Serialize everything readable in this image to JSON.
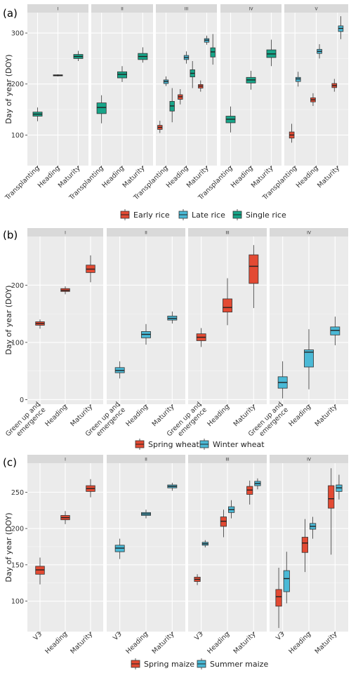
{
  "chart_data": [
    {
      "type": "box",
      "panel_label": "(a)",
      "ylabel": "Day of year (DOY)",
      "ylim": [
        40,
        340
      ],
      "yticks": [
        100,
        200,
        300
      ],
      "facets": [
        "I",
        "II",
        "III",
        "IV",
        "V"
      ],
      "categories": [
        "Transplanting",
        "Heading",
        "Maturity"
      ],
      "legend": [
        {
          "name": "Early rice",
          "color": "#e34a33"
        },
        {
          "name": "Late rice",
          "color": "#4ab9d6"
        },
        {
          "name": "Single rice",
          "color": "#17a589"
        }
      ],
      "boxes": [
        {
          "facet": 0,
          "category": 0,
          "series": "Single rice",
          "stats": [
            127,
            137,
            141,
            145,
            154
          ]
        },
        {
          "facet": 0,
          "category": 1,
          "series": "Single rice",
          "stats": [
            215,
            216,
            217,
            218,
            219
          ]
        },
        {
          "facet": 0,
          "category": 2,
          "series": "Single rice",
          "stats": [
            245,
            250,
            254,
            258,
            265
          ]
        },
        {
          "facet": 1,
          "category": 0,
          "series": "Single rice",
          "stats": [
            123,
            142,
            154,
            163,
            178
          ]
        },
        {
          "facet": 1,
          "category": 1,
          "series": "Single rice",
          "stats": [
            204,
            212,
            219,
            224,
            235
          ]
        },
        {
          "facet": 1,
          "category": 2,
          "series": "Single rice",
          "stats": [
            242,
            248,
            254,
            260,
            272
          ]
        },
        {
          "facet": 2,
          "category": 0,
          "series": "Early rice",
          "stats": [
            104,
            111,
            115,
            119,
            128
          ]
        },
        {
          "facet": 2,
          "category": 0,
          "series": "Late rice",
          "stats": [
            196,
            201,
            205,
            208,
            215
          ]
        },
        {
          "facet": 2,
          "category": 0,
          "series": "Single rice",
          "stats": [
            125,
            147,
            157,
            166,
            192
          ]
        },
        {
          "facet": 2,
          "category": 1,
          "series": "Early rice",
          "stats": [
            160,
            170,
            175,
            179,
            190
          ]
        },
        {
          "facet": 2,
          "category": 1,
          "series": "Late rice",
          "stats": [
            240,
            248,
            252,
            256,
            264
          ]
        },
        {
          "facet": 2,
          "category": 1,
          "series": "Single rice",
          "stats": [
            192,
            214,
            221,
            228,
            245
          ]
        },
        {
          "facet": 2,
          "category": 2,
          "series": "Early rice",
          "stats": [
            185,
            192,
            196,
            199,
            207
          ]
        },
        {
          "facet": 2,
          "category": 2,
          "series": "Late rice",
          "stats": [
            277,
            282,
            286,
            289,
            295
          ]
        },
        {
          "facet": 2,
          "category": 2,
          "series": "Single rice",
          "stats": [
            238,
            253,
            263,
            271,
            298
          ]
        },
        {
          "facet": 3,
          "category": 0,
          "series": "Single rice",
          "stats": [
            105,
            124,
            131,
            137,
            156
          ]
        },
        {
          "facet": 3,
          "category": 1,
          "series": "Single rice",
          "stats": [
            189,
            202,
            208,
            213,
            226
          ]
        },
        {
          "facet": 3,
          "category": 2,
          "series": "Single rice",
          "stats": [
            235,
            252,
            259,
            267,
            287
          ]
        },
        {
          "facet": 4,
          "category": 0,
          "series": "Early rice",
          "stats": [
            85,
            94,
            100,
            106,
            122
          ]
        },
        {
          "facet": 4,
          "category": 0,
          "series": "Late rice",
          "stats": [
            195,
            205,
            210,
            213,
            224
          ]
        },
        {
          "facet": 4,
          "category": 1,
          "series": "Early rice",
          "stats": [
            157,
            165,
            169,
            173,
            182
          ]
        },
        {
          "facet": 4,
          "category": 1,
          "series": "Late rice",
          "stats": [
            250,
            260,
            264,
            268,
            278
          ]
        },
        {
          "facet": 4,
          "category": 2,
          "series": "Early rice",
          "stats": [
            185,
            193,
            197,
            201,
            210
          ]
        },
        {
          "facet": 4,
          "category": 2,
          "series": "Late rice",
          "stats": [
            288,
            303,
            309,
            314,
            333
          ]
        }
      ]
    },
    {
      "type": "box",
      "panel_label": "(b)",
      "ylabel": "Day of year (DOY)",
      "ylim": [
        -8,
        285
      ],
      "yticks": [
        0,
        100,
        200
      ],
      "facets": [
        "I",
        "II",
        "III",
        "IV"
      ],
      "categories": [
        "Green up and\nemergence",
        "Heading",
        "Maturity"
      ],
      "legend": [
        {
          "name": "Spring wheat",
          "color": "#e34a33"
        },
        {
          "name": "Winter wheat",
          "color": "#4ab9d6"
        }
      ],
      "boxes": [
        {
          "facet": 0,
          "category": 0,
          "series": "Spring wheat",
          "stats": [
            124,
            130,
            133,
            136,
            140
          ]
        },
        {
          "facet": 0,
          "category": 1,
          "series": "Spring wheat",
          "stats": [
            184,
            189,
            191,
            194,
            198
          ]
        },
        {
          "facet": 0,
          "category": 2,
          "series": "Spring wheat",
          "stats": [
            205,
            222,
            228,
            235,
            252
          ]
        },
        {
          "facet": 1,
          "category": 0,
          "series": "Winter wheat",
          "stats": [
            37,
            47,
            51,
            56,
            67
          ]
        },
        {
          "facet": 1,
          "category": 1,
          "series": "Winter wheat",
          "stats": [
            96,
            108,
            114,
            119,
            132
          ]
        },
        {
          "facet": 1,
          "category": 2,
          "series": "Winter wheat",
          "stats": [
            133,
            139,
            142,
            146,
            154
          ]
        },
        {
          "facet": 2,
          "category": 0,
          "series": "Spring wheat",
          "stats": [
            92,
            103,
            109,
            115,
            125
          ]
        },
        {
          "facet": 2,
          "category": 1,
          "series": "Spring wheat",
          "stats": [
            130,
            153,
            161,
            176,
            212
          ]
        },
        {
          "facet": 2,
          "category": 2,
          "series": "Spring wheat",
          "stats": [
            160,
            203,
            233,
            253,
            270
          ]
        },
        {
          "facet": 3,
          "category": 0,
          "series": "Winter wheat",
          "stats": [
            2,
            20,
            30,
            40,
            67
          ]
        },
        {
          "facet": 3,
          "category": 1,
          "series": "Winter wheat",
          "stats": [
            18,
            57,
            83,
            87,
            123
          ]
        },
        {
          "facet": 3,
          "category": 2,
          "series": "Winter wheat",
          "stats": [
            95,
            113,
            121,
            127,
            145
          ]
        }
      ]
    },
    {
      "type": "box",
      "panel_label": "(c)",
      "ylabel": "Day of year (DOY)",
      "ylim": [
        58,
        290
      ],
      "yticks": [
        100,
        150,
        200,
        250
      ],
      "facets": [
        "I",
        "II",
        "III",
        "IV"
      ],
      "categories": [
        "V3",
        "Heading",
        "Maturity"
      ],
      "legend": [
        {
          "name": "Spring maize",
          "color": "#e34a33"
        },
        {
          "name": "Summer maize",
          "color": "#4ab9d6"
        }
      ],
      "boxes": [
        {
          "facet": 0,
          "category": 0,
          "series": "Spring maize",
          "stats": [
            123,
            137,
            143,
            148,
            160
          ]
        },
        {
          "facet": 0,
          "category": 1,
          "series": "Spring maize",
          "stats": [
            206,
            212,
            215,
            218,
            224
          ]
        },
        {
          "facet": 0,
          "category": 2,
          "series": "Spring maize",
          "stats": [
            243,
            251,
            255,
            259,
            268
          ]
        },
        {
          "facet": 1,
          "category": 0,
          "series": "Summer maize",
          "stats": [
            158,
            168,
            173,
            177,
            186
          ]
        },
        {
          "facet": 1,
          "category": 1,
          "series": "Summer maize",
          "stats": [
            214,
            218,
            220,
            222,
            226
          ]
        },
        {
          "facet": 1,
          "category": 2,
          "series": "Summer maize",
          "stats": [
            252,
            256,
            258,
            260,
            263
          ]
        },
        {
          "facet": 2,
          "category": 0,
          "series": "Spring maize",
          "stats": [
            122,
            127,
            130,
            133,
            137
          ]
        },
        {
          "facet": 2,
          "category": 0,
          "series": "Summer maize",
          "stats": [
            174,
            177,
            179,
            181,
            184
          ]
        },
        {
          "facet": 2,
          "category": 1,
          "series": "Spring maize",
          "stats": [
            188,
            203,
            210,
            216,
            226
          ]
        },
        {
          "facet": 2,
          "category": 1,
          "series": "Summer maize",
          "stats": [
            214,
            222,
            226,
            230,
            239
          ]
        },
        {
          "facet": 2,
          "category": 2,
          "series": "Spring maize",
          "stats": [
            233,
            247,
            253,
            258,
            266
          ]
        },
        {
          "facet": 2,
          "category": 2,
          "series": "Summer maize",
          "stats": [
            254,
            259,
            262,
            265,
            269
          ]
        },
        {
          "facet": 3,
          "category": 0,
          "series": "Spring maize",
          "stats": [
            63,
            93,
            106,
            116,
            146
          ]
        },
        {
          "facet": 3,
          "category": 0,
          "series": "Summer maize",
          "stats": [
            97,
            113,
            131,
            142,
            168
          ]
        },
        {
          "facet": 3,
          "category": 1,
          "series": "Spring maize",
          "stats": [
            140,
            167,
            180,
            188,
            213
          ]
        },
        {
          "facet": 3,
          "category": 1,
          "series": "Summer maize",
          "stats": [
            186,
            199,
            203,
            207,
            216
          ]
        },
        {
          "facet": 3,
          "category": 2,
          "series": "Spring maize",
          "stats": [
            164,
            228,
            241,
            259,
            283
          ]
        },
        {
          "facet": 3,
          "category": 2,
          "series": "Summer maize",
          "stats": [
            240,
            251,
            256,
            260,
            274
          ]
        }
      ]
    }
  ]
}
